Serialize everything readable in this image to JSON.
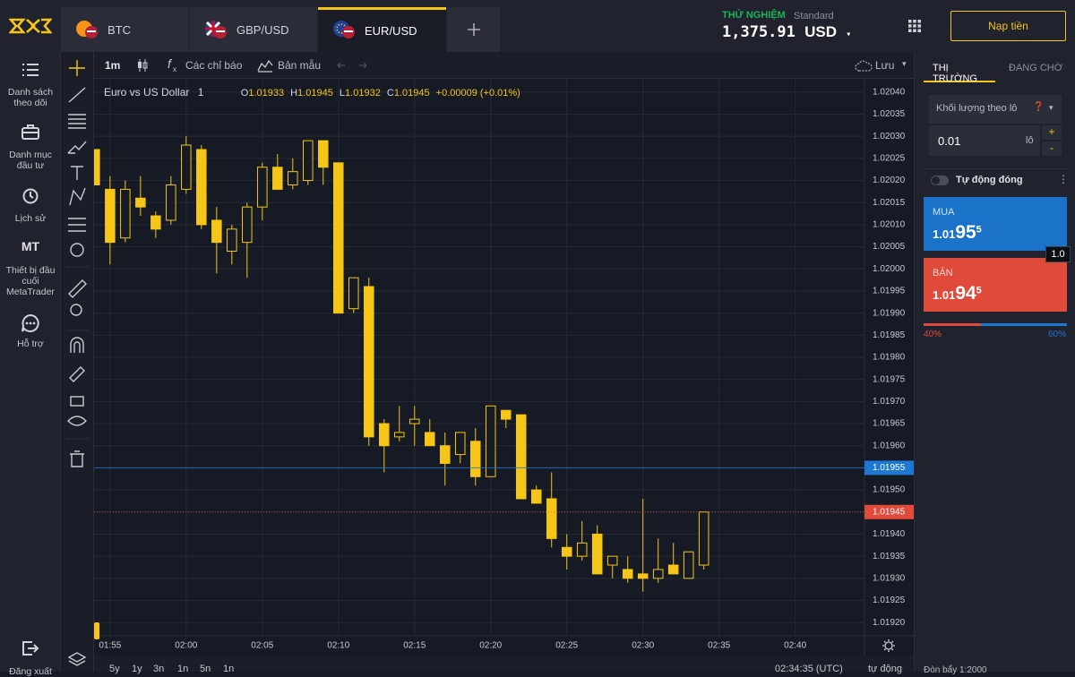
{
  "header": {
    "tabs": [
      {
        "label": "BTC"
      },
      {
        "label": "GBP/USD"
      },
      {
        "label": "EUR/USD"
      }
    ],
    "account_mode": "THỬ NGHIỆM",
    "account_type": "Standard",
    "balance": "1,375.91",
    "currency": "USD",
    "deposit_button": "Nạp tiền"
  },
  "sidebar": [
    {
      "label": "Danh sách theo dõi"
    },
    {
      "label": "Danh mục đầu tư"
    },
    {
      "label": "Lịch sử"
    },
    {
      "icon_text": "MT",
      "label": "Thiết bị đầu cuối MetaTrader"
    },
    {
      "label": "Hỗ trợ"
    },
    {
      "label": "Đăng xuất"
    }
  ],
  "toolbar": {
    "interval": "1m",
    "indicators": "Các chỉ báo",
    "templates": "Bản mẫu",
    "save": "Lưu"
  },
  "chart_data": {
    "type": "candlestick",
    "title": "Euro vs US Dollar",
    "interval": "1",
    "ohlc": [
      {
        "key": "O",
        "value": "1.01933"
      },
      {
        "key": "H",
        "value": "1.01945"
      },
      {
        "key": "L",
        "value": "1.01932"
      },
      {
        "key": "C",
        "value": "1.01945"
      }
    ],
    "change": "+0.00009 (+0.01%)",
    "color": "#f5c518",
    "x": [
      114,
      115,
      116,
      117,
      118,
      119,
      120,
      121,
      122,
      123,
      124,
      125,
      126,
      127,
      128,
      129,
      130,
      131,
      132,
      133,
      134,
      135,
      136,
      137,
      138,
      139,
      140,
      141,
      142,
      143,
      144,
      145,
      146,
      147,
      148,
      149,
      150,
      151,
      152,
      153,
      154
    ],
    "open": [
      1.02027,
      1.02018,
      1.02007,
      1.02016,
      1.02012,
      1.02011,
      1.02018,
      1.02027,
      1.02011,
      1.02004,
      1.02006,
      1.02014,
      1.02023,
      1.02019,
      1.0202,
      1.02029,
      1.02024,
      1.01991,
      1.01996,
      1.01965,
      1.01962,
      1.01965,
      1.01963,
      1.0196,
      1.01958,
      1.01961,
      1.01953,
      1.01968,
      1.01967,
      1.0195,
      1.01948,
      1.01937,
      1.01935,
      1.0194,
      1.01933,
      1.01932,
      1.01931,
      1.0193,
      1.01933,
      1.0193,
      1.01933
    ],
    "high": [
      1.02027,
      1.02021,
      1.0202,
      1.02021,
      1.02013,
      1.02021,
      1.0203,
      1.02028,
      1.02014,
      1.0201,
      1.02015,
      1.02024,
      1.02026,
      1.02025,
      1.02029,
      1.02029,
      1.02024,
      1.01998,
      1.01998,
      1.01966,
      1.01969,
      1.01969,
      1.01966,
      1.01963,
      1.01963,
      1.01964,
      1.01969,
      1.01968,
      1.01967,
      1.01951,
      1.01954,
      1.0194,
      1.01943,
      1.01942,
      1.01935,
      1.01935,
      1.01948,
      1.01939,
      1.01938,
      1.01936,
      1.01945
    ],
    "low": [
      1.02019,
      1.02001,
      1.02006,
      1.02012,
      1.02007,
      1.0201,
      1.02017,
      1.02009,
      1.01999,
      1.02001,
      1.01998,
      1.02011,
      1.02018,
      1.02018,
      1.02019,
      1.02019,
      1.0199,
      1.0199,
      1.0196,
      1.01954,
      1.01961,
      1.0196,
      1.0196,
      1.01951,
      1.01956,
      1.01951,
      1.01953,
      1.01964,
      1.01948,
      1.01947,
      1.01937,
      1.01932,
      1.01934,
      1.01931,
      1.0193,
      1.01929,
      1.01927,
      1.01929,
      1.01931,
      1.0193,
      1.01932
    ],
    "close": [
      1.02019,
      1.02006,
      1.02018,
      1.02014,
      1.02009,
      1.02019,
      1.02028,
      1.0201,
      1.02006,
      1.02009,
      1.02014,
      1.02023,
      1.02018,
      1.02022,
      1.02029,
      1.02023,
      1.0199,
      1.01998,
      1.01962,
      1.0196,
      1.01963,
      1.01966,
      1.0196,
      1.01956,
      1.01963,
      1.01953,
      1.01969,
      1.01966,
      1.01948,
      1.01947,
      1.01939,
      1.01935,
      1.01938,
      1.01931,
      1.01935,
      1.0193,
      1.0193,
      1.01932,
      1.01931,
      1.01936,
      1.01945
    ],
    "xlim": [
      113.95,
      164.55
    ],
    "xticks": [
      {
        "value": 115,
        "label": "01:55"
      },
      {
        "value": 120,
        "label": "02:00"
      },
      {
        "value": 125,
        "label": "02:05"
      },
      {
        "value": 130,
        "label": "02:10"
      },
      {
        "value": 135,
        "label": "02:15"
      },
      {
        "value": 140,
        "label": "02:20"
      },
      {
        "value": 145,
        "label": "02:25"
      },
      {
        "value": 150,
        "label": "02:30"
      },
      {
        "value": 155,
        "label": "02:35"
      },
      {
        "value": 160,
        "label": "02:40"
      }
    ],
    "ylim": [
      1.01917,
      1.02043
    ],
    "yticks": [
      {
        "value": 1.0204,
        "label": "1.02040"
      },
      1.02035,
      {
        "value": 1.0203,
        "label": "1.02030"
      },
      1.02025,
      {
        "value": 1.0202,
        "label": "1.02020"
      },
      1.02015,
      {
        "value": 1.0201,
        "label": "1.02010"
      },
      1.02005,
      {
        "value": 1.02,
        "label": "1.02000"
      },
      1.01995,
      {
        "value": 1.0199,
        "label": "1.01990"
      },
      1.01985,
      {
        "value": 1.0198,
        "label": "1.01980"
      },
      1.01975,
      {
        "value": 1.0197,
        "label": "1.01970"
      },
      1.01965,
      {
        "value": 1.0196,
        "label": "1.01960"
      },
      1.01955,
      {
        "value": 1.0195,
        "label": "1.01950"
      },
      1.01945,
      {
        "value": 1.0194,
        "label": "1.01940"
      },
      1.01935,
      {
        "value": 1.0193,
        "label": "1.01930"
      },
      1.01925,
      {
        "value": 1.0192,
        "label": "1.01920"
      }
    ],
    "grid": true,
    "price_lines": [
      {
        "value": 1.01955,
        "color": "#1e78d2",
        "dashed": false
      },
      {
        "value": 1.01945,
        "color": "#e04a3a",
        "dashed": true
      }
    ]
  },
  "right_panel": {
    "tabs": [
      "THỊ TRƯỜNG",
      "ĐANG CHỜ"
    ],
    "volume_mode": "Khối lượng theo lô",
    "lot": "0.01",
    "lot_unit": "lô",
    "auto_close": "Tự động đóng",
    "buy": {
      "label": "MUA",
      "price_small": "1.01",
      "price_big": "95",
      "price_pip": "5"
    },
    "sell": {
      "label": "BÁN",
      "price_small": "1.01",
      "price_big": "94",
      "price_pip": "5"
    },
    "spread": "1.0",
    "sentiment": {
      "sell": {
        "value": 40,
        "label": "40%"
      },
      "buy": {
        "value": 60,
        "label": "60%"
      }
    },
    "leverage": "Đòn bẩy 1:2000"
  },
  "bottom_bar": {
    "ranges": [
      "5y",
      "1y",
      "3n",
      "1n",
      "5n",
      "1n"
    ],
    "clock": "02:34:35 (UTC)",
    "scale_mode": "tự động"
  }
}
